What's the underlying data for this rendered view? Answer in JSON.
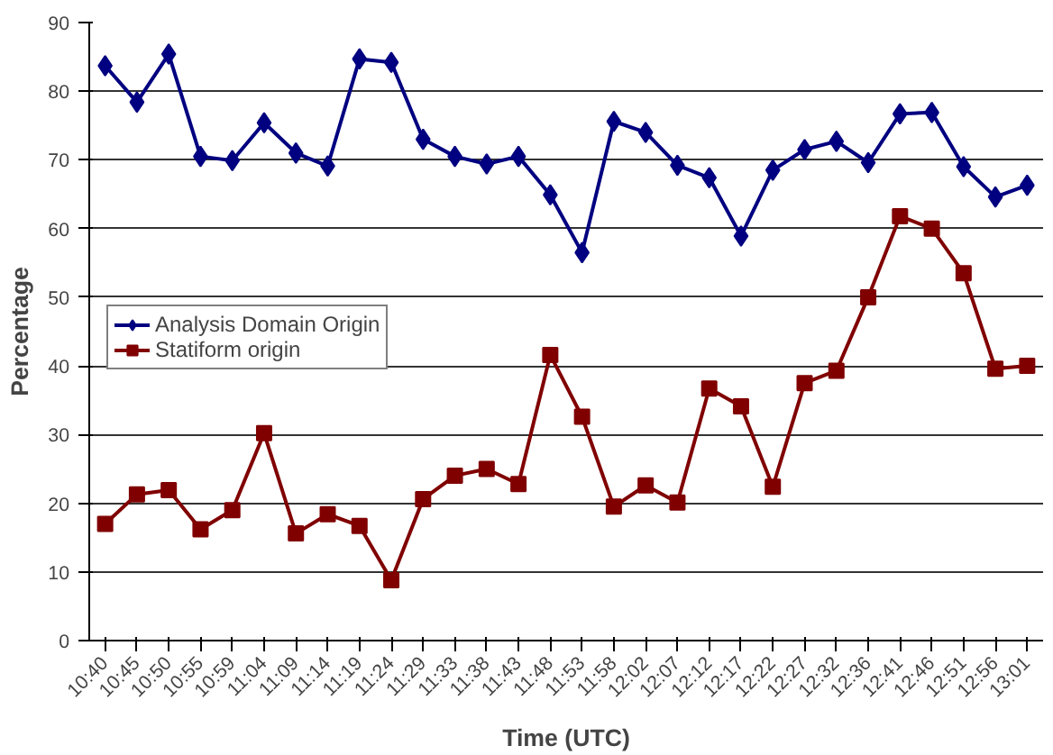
{
  "chart_data": {
    "type": "line",
    "xlabel": "Time (UTC)",
    "ylabel": "Percentage",
    "categories": [
      "10:40",
      "10:45",
      "10:50",
      "10:55",
      "10:59",
      "11:04",
      "11:09",
      "11:14",
      "11:19",
      "11:24",
      "11:29",
      "11:33",
      "11:38",
      "11:43",
      "11:48",
      "11:53",
      "11:58",
      "12:02",
      "12:07",
      "12:12",
      "12:17",
      "12:22",
      "12:27",
      "12:32",
      "12:36",
      "12:41",
      "12:46",
      "12:51",
      "12:56",
      "13:01"
    ],
    "series": [
      {
        "name": "Analysis Domain Origin",
        "color": "#000080",
        "marker": "diamond",
        "values": [
          83.7,
          78.4,
          85.4,
          70.5,
          69.9,
          75.4,
          71.0,
          69.1,
          84.7,
          84.2,
          73.0,
          70.5,
          69.4,
          70.5,
          64.9,
          56.5,
          75.6,
          74.0,
          69.2,
          67.4,
          58.9,
          68.5,
          71.5,
          72.7,
          69.6,
          76.7,
          76.9,
          69.0,
          64.6,
          66.3
        ]
      },
      {
        "name": "Statiform origin",
        "color": "#800000",
        "marker": "square",
        "values": [
          17.0,
          21.3,
          21.9,
          16.2,
          19.0,
          30.2,
          15.6,
          18.4,
          16.7,
          8.8,
          20.6,
          24.0,
          25.0,
          22.8,
          41.6,
          32.6,
          19.5,
          22.6,
          20.1,
          36.7,
          34.1,
          22.4,
          37.5,
          39.3,
          50.0,
          61.8,
          60.0,
          53.5,
          39.6,
          40.0
        ]
      }
    ],
    "ylim": [
      0,
      90
    ],
    "yticks": [
      0,
      10,
      20,
      30,
      40,
      50,
      60,
      70,
      80,
      90
    ],
    "grid": "y",
    "legend": "left",
    "line_style": "solid"
  }
}
